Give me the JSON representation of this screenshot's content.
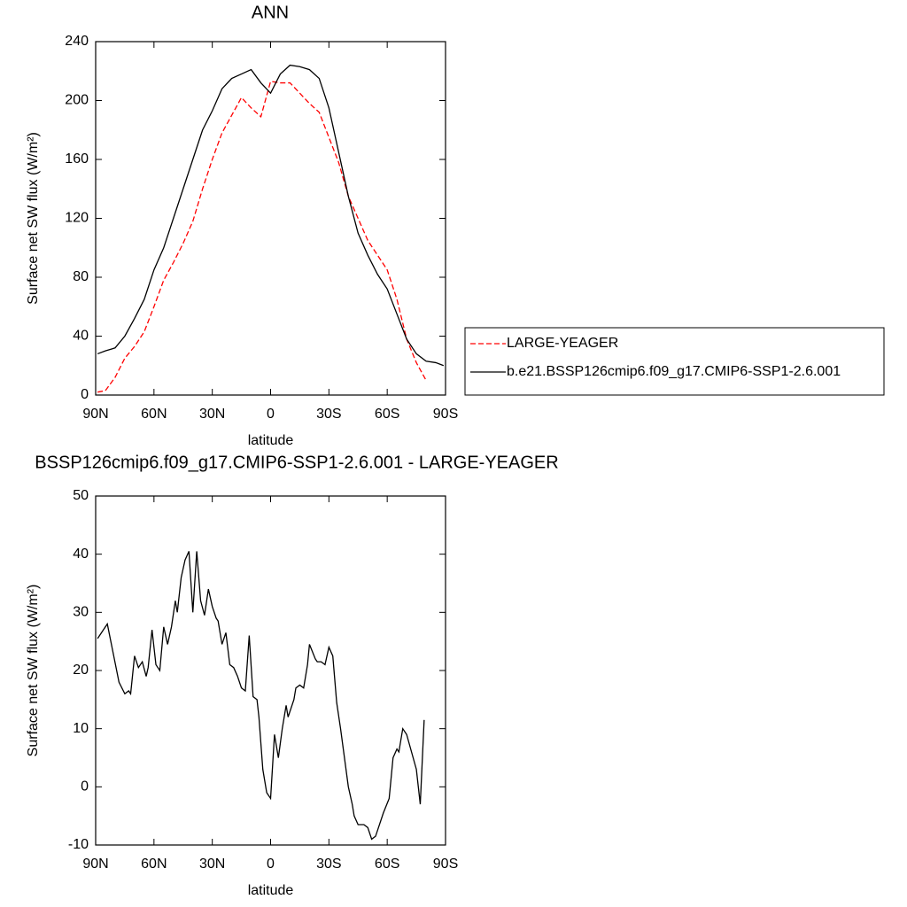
{
  "chart_data": [
    {
      "type": "line",
      "title": "ANN",
      "xlabel": "latitude",
      "ylabel": "Surface net SW flux (W/m²)",
      "x": [
        89,
        85,
        80,
        75,
        70,
        65,
        60,
        55,
        50,
        45,
        40,
        35,
        30,
        25,
        20,
        15,
        10,
        5,
        0,
        -5,
        -10,
        -15,
        -20,
        -25,
        -30,
        -35,
        -40,
        -45,
        -50,
        -55,
        -60,
        -65,
        -70,
        -75,
        -80,
        -85,
        -89
      ],
      "series": [
        {
          "name": "LARGE-YEAGER",
          "color": "#ff0000",
          "line_style": "dashed",
          "values": [
            2,
            3,
            12,
            25,
            33,
            43,
            60,
            78,
            90,
            103,
            118,
            140,
            160,
            178,
            190,
            202,
            195,
            189,
            213,
            212,
            212,
            205,
            198,
            192,
            175,
            158,
            135,
            120,
            105,
            95,
            85,
            65,
            38,
            22,
            10,
            null,
            null
          ]
        },
        {
          "name": "b.e21.BSSP126cmip6.f09_g17.CMIP6-SSP1-2.6.001",
          "color": "#000000",
          "line_style": "solid",
          "values": [
            28,
            30,
            32,
            40,
            52,
            65,
            85,
            100,
            120,
            140,
            160,
            180,
            193,
            208,
            215,
            218,
            221,
            212,
            205,
            218,
            224,
            223,
            221,
            215,
            195,
            165,
            135,
            110,
            95,
            82,
            72,
            55,
            38,
            28,
            23,
            22,
            20
          ]
        }
      ],
      "xlim": [
        90,
        -90
      ],
      "xticks": [
        {
          "value": 90,
          "label": "90N"
        },
        {
          "value": 60,
          "label": "60N"
        },
        {
          "value": 30,
          "label": "30N"
        },
        0,
        {
          "value": -30,
          "label": "30S"
        },
        {
          "value": -60,
          "label": "60S"
        },
        {
          "value": -90,
          "label": "90S"
        }
      ],
      "ylim": [
        0,
        240
      ],
      "yticks": [
        0,
        40,
        80,
        120,
        160,
        200,
        240
      ],
      "legend": "right"
    },
    {
      "type": "line",
      "title": "BSSP126cmip6.f09_g17.CMIP6-SSP1-2.6.001 - LARGE-YEAGER",
      "xlabel": "latitude",
      "ylabel": "Surface net SW flux (W/m²)",
      "x": [
        89,
        86,
        84,
        81,
        78,
        75,
        73,
        72,
        70,
        68,
        66,
        64,
        63,
        61,
        59,
        57,
        55,
        53,
        51,
        49,
        48,
        46,
        44,
        42,
        40,
        38,
        36,
        34,
        32,
        30,
        28,
        27,
        25,
        23,
        21,
        19,
        17,
        15,
        13,
        11,
        9,
        7,
        6,
        4,
        2,
        0,
        -2,
        -4,
        -6,
        -8,
        -9,
        -12,
        -13,
        -15,
        -17,
        -19,
        -20,
        -23,
        -24,
        -26,
        -28,
        -30,
        -32,
        -34,
        -36,
        -38,
        -40,
        -42,
        -43,
        -45,
        -48,
        -50,
        -52,
        -54,
        -56,
        -58,
        -61,
        -63,
        -65,
        -66,
        -68,
        -70,
        -75,
        -77,
        -79
      ],
      "color": "#000000",
      "values": [
        25.5,
        27,
        28,
        23,
        18,
        16,
        16.5,
        16,
        22.5,
        20.5,
        21.5,
        19,
        20.5,
        27,
        21,
        20,
        27.5,
        24.5,
        27.5,
        32,
        30,
        36,
        39,
        40.5,
        30,
        40.5,
        32,
        29.5,
        34,
        31,
        29,
        28.5,
        24.5,
        26.5,
        21,
        20.5,
        19,
        17,
        16.5,
        26,
        15.5,
        15,
        12,
        3,
        -1,
        -2,
        9,
        5,
        10,
        14,
        12,
        15,
        17,
        17.5,
        17,
        21,
        24.5,
        22,
        21.5,
        21.5,
        21,
        24,
        22.5,
        14.5,
        10,
        5,
        0,
        -3,
        -5,
        -6.5,
        -6.5,
        -7,
        -9,
        -8.5,
        -6.5,
        -4.5,
        -2,
        5,
        6.5,
        6,
        10,
        9,
        3,
        -3,
        11.5
      ],
      "xlim": [
        90,
        -90
      ],
      "xticks": [
        {
          "value": 90,
          "label": "90N"
        },
        {
          "value": 60,
          "label": "60N"
        },
        {
          "value": 30,
          "label": "30N"
        },
        0,
        {
          "value": -30,
          "label": "30S"
        },
        {
          "value": -60,
          "label": "60S"
        },
        {
          "value": -90,
          "label": "90S"
        }
      ],
      "ylim": [
        -10,
        50
      ],
      "yticks": [
        -10,
        0,
        10,
        20,
        30,
        40,
        50
      ]
    }
  ]
}
